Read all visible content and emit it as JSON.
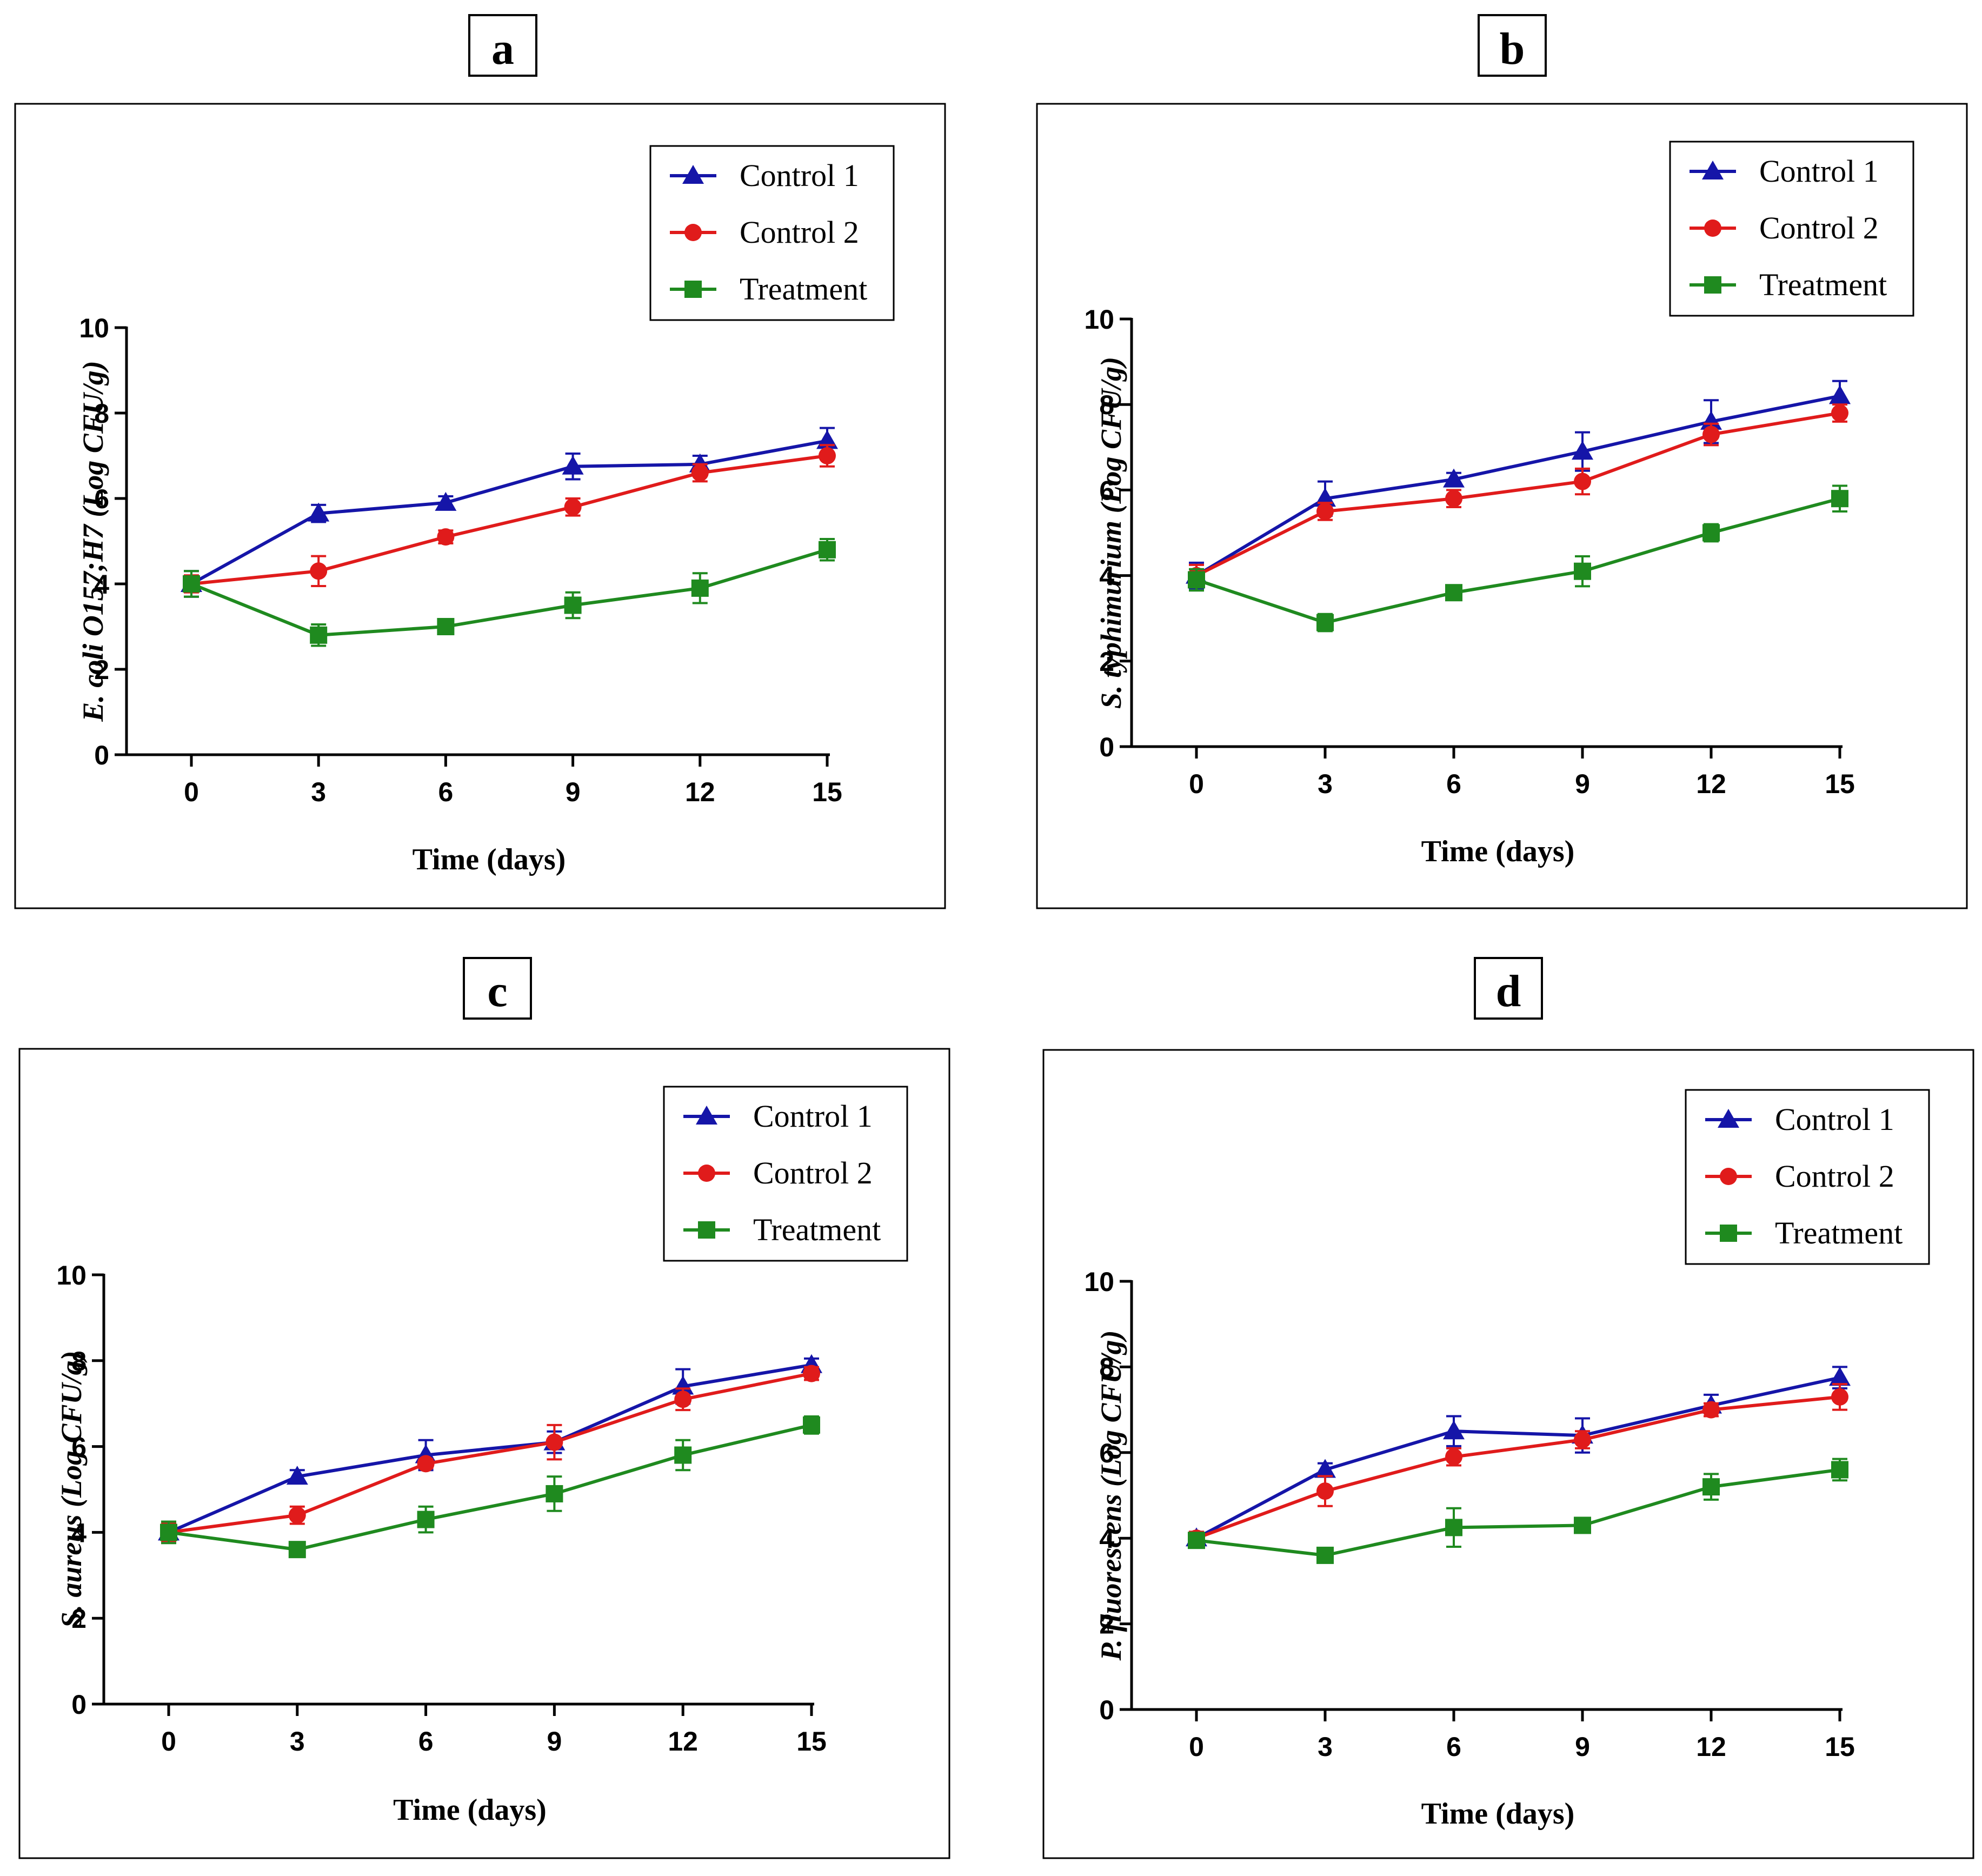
{
  "colors": {
    "control1": "#1515a8",
    "control2": "#e01b1b",
    "treatment": "#1f8a1f",
    "axis": "#000000"
  },
  "chart_data": [
    {
      "panel": "a",
      "type": "line",
      "xlabel": "Time (days)",
      "ylabel": "E. coli O157;H7 (Log CFU/g)",
      "x": [
        0,
        3,
        6,
        9,
        12,
        15
      ],
      "xlim": [
        0,
        15
      ],
      "ylim": [
        0,
        10
      ],
      "yticks": [
        0,
        2,
        4,
        6,
        8,
        10
      ],
      "legend_position": "top-right",
      "series": [
        {
          "name": "Control 1",
          "marker": "triangle",
          "color": "#1515a8",
          "values": [
            4.0,
            5.65,
            5.9,
            6.75,
            6.8,
            7.35
          ],
          "errors": [
            0.3,
            0.2,
            0.15,
            0.3,
            0.2,
            0.3
          ]
        },
        {
          "name": "Control 2",
          "marker": "circle",
          "color": "#e01b1b",
          "values": [
            4.0,
            4.3,
            5.1,
            5.8,
            6.6,
            7.0
          ],
          "errors": [
            0.2,
            0.35,
            0.15,
            0.2,
            0.2,
            0.25
          ]
        },
        {
          "name": "Treatment",
          "marker": "square",
          "color": "#1f8a1f",
          "values": [
            4.0,
            2.8,
            3.0,
            3.5,
            3.9,
            4.8
          ],
          "errors": [
            0.3,
            0.25,
            0.1,
            0.3,
            0.35,
            0.25
          ]
        }
      ]
    },
    {
      "panel": "b",
      "type": "line",
      "xlabel": "Time (days)",
      "ylabel": "S. typhimurium (Log CFU/g)",
      "x": [
        0,
        3,
        6,
        9,
        12,
        15
      ],
      "xlim": [
        0,
        15
      ],
      "ylim": [
        0,
        10
      ],
      "yticks": [
        0,
        2,
        4,
        6,
        8,
        10
      ],
      "legend_position": "top-right",
      "series": [
        {
          "name": "Control 1",
          "marker": "triangle",
          "color": "#1515a8",
          "values": [
            4.0,
            5.8,
            6.25,
            6.9,
            7.6,
            8.2
          ],
          "errors": [
            0.3,
            0.4,
            0.15,
            0.45,
            0.5,
            0.35
          ]
        },
        {
          "name": "Control 2",
          "marker": "circle",
          "color": "#e01b1b",
          "values": [
            4.0,
            5.5,
            5.8,
            6.2,
            7.3,
            7.8
          ],
          "errors": [
            0.25,
            0.2,
            0.2,
            0.3,
            0.25,
            0.2
          ]
        },
        {
          "name": "Treatment",
          "marker": "square",
          "color": "#1f8a1f",
          "values": [
            3.9,
            2.9,
            3.6,
            4.1,
            5.0,
            5.8
          ],
          "errors": [
            0.25,
            0.2,
            0.1,
            0.35,
            0.2,
            0.3
          ]
        }
      ]
    },
    {
      "panel": "c",
      "type": "line",
      "xlabel": "Time (days)",
      "ylabel": "S. aureus (Log CFU/g)",
      "x": [
        0,
        3,
        6,
        9,
        12,
        15
      ],
      "xlim": [
        0,
        15
      ],
      "ylim": [
        0,
        10
      ],
      "yticks": [
        0,
        2,
        4,
        6,
        8,
        10
      ],
      "legend_position": "top-right",
      "series": [
        {
          "name": "Control 1",
          "marker": "triangle",
          "color": "#1515a8",
          "values": [
            4.0,
            5.3,
            5.8,
            6.1,
            7.4,
            7.9
          ],
          "errors": [
            0.2,
            0.15,
            0.35,
            0.25,
            0.4,
            0.15
          ]
        },
        {
          "name": "Control 2",
          "marker": "circle",
          "color": "#e01b1b",
          "values": [
            4.0,
            4.4,
            5.6,
            6.1,
            7.1,
            7.7
          ],
          "errors": [
            0.2,
            0.2,
            0.1,
            0.4,
            0.25,
            0.15
          ]
        },
        {
          "name": "Treatment",
          "marker": "square",
          "color": "#1f8a1f",
          "values": [
            4.0,
            3.6,
            4.3,
            4.9,
            5.8,
            6.5
          ],
          "errors": [
            0.25,
            0.15,
            0.3,
            0.4,
            0.35,
            0.2
          ]
        }
      ]
    },
    {
      "panel": "d",
      "type": "line",
      "xlabel": "Time (days)",
      "ylabel": "P. fluorescens (Log CFU/g)",
      "x": [
        0,
        3,
        6,
        9,
        12,
        15
      ],
      "xlim": [
        0,
        15
      ],
      "ylim": [
        0,
        10
      ],
      "yticks": [
        0,
        2,
        4,
        6,
        8,
        10
      ],
      "legend_position": "top-right",
      "series": [
        {
          "name": "Control 1",
          "marker": "triangle",
          "color": "#1515a8",
          "values": [
            4.0,
            5.6,
            6.5,
            6.4,
            7.1,
            7.75
          ],
          "errors": [
            0.15,
            0.15,
            0.35,
            0.4,
            0.25,
            0.25
          ]
        },
        {
          "name": "Control 2",
          "marker": "circle",
          "color": "#e01b1b",
          "values": [
            4.0,
            5.1,
            5.9,
            6.3,
            7.0,
            7.3
          ],
          "errors": [
            0.15,
            0.35,
            0.2,
            0.2,
            0.15,
            0.3
          ]
        },
        {
          "name": "Treatment",
          "marker": "square",
          "color": "#1f8a1f",
          "values": [
            3.95,
            3.6,
            4.25,
            4.3,
            5.2,
            5.6
          ],
          "errors": [
            0.15,
            0.1,
            0.45,
            0.1,
            0.3,
            0.25
          ]
        }
      ]
    }
  ]
}
